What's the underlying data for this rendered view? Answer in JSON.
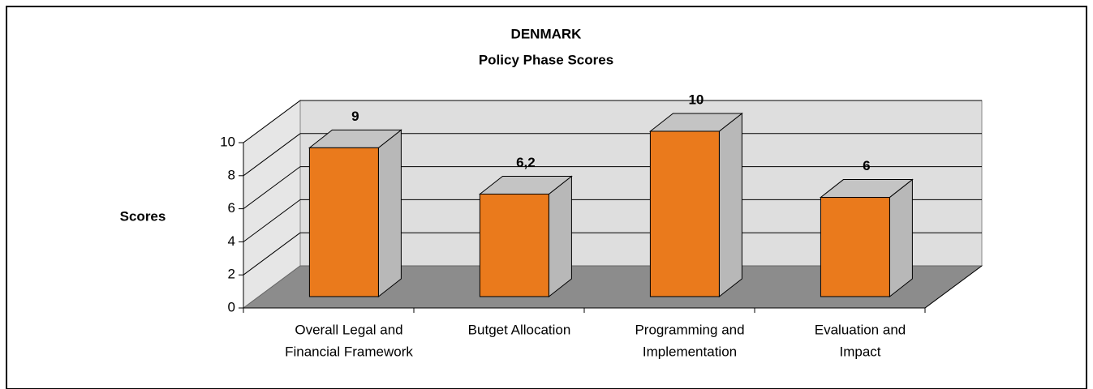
{
  "chart_data": {
    "type": "bar3d",
    "title": "DENMARK",
    "subtitle": "Policy Phase Scores",
    "y_label": "Scores",
    "categories": [
      [
        "Overall Legal and",
        "Financial Framework"
      ],
      [
        "Butget Allocation"
      ],
      [
        "Programming and",
        "Implementation"
      ],
      [
        "Evaluation and",
        "Impact"
      ]
    ],
    "values": [
      9,
      6.2,
      10,
      6
    ],
    "value_labels": [
      "9",
      "6,2",
      "10",
      "6"
    ],
    "color": "#ea7a1c",
    "ylim": [
      0,
      10
    ],
    "yticks": [
      0,
      2,
      4,
      6,
      8,
      10
    ],
    "grid": true
  }
}
